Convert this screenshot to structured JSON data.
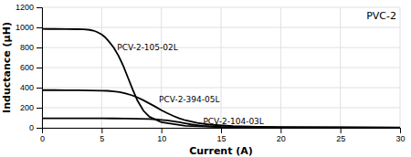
{
  "chart_data": {
    "type": "line",
    "title": "PVC-2",
    "x_label": "Current (A)",
    "y_label": "Inductance (μH)",
    "xlim": [
      0,
      30
    ],
    "ylim": [
      0,
      1200
    ],
    "xticks": [
      0,
      5,
      10,
      15,
      20,
      25,
      30
    ],
    "yticks": [
      0,
      200,
      400,
      600,
      800,
      1000,
      1200
    ],
    "grid": true,
    "series": [
      {
        "color": "#000000",
        "x": [
          0,
          0.5,
          1,
          2,
          3,
          3.5,
          4,
          4.3,
          4.6,
          5.0,
          5.3,
          5.6,
          6.0,
          6.4,
          6.8,
          7.2,
          7.6,
          8.0,
          8.5,
          9.0,
          10,
          12,
          15,
          20,
          25,
          30
        ],
        "values": [
          985,
          984,
          984,
          983,
          982,
          980,
          975,
          968,
          955,
          930,
          900,
          860,
          800,
          720,
          620,
          500,
          380,
          270,
          170,
          110,
          55,
          20,
          8,
          4,
          3,
          2
        ]
      },
      {
        "color": "#000000",
        "x": [
          0,
          1,
          2,
          3,
          4,
          5,
          5.5,
          6,
          6.5,
          7,
          7.5,
          8,
          8.5,
          9,
          9.5,
          10,
          10.5,
          11,
          11.5,
          12,
          13,
          14,
          16,
          18,
          20,
          25,
          30
        ],
        "values": [
          375,
          375,
          374,
          373,
          372,
          370,
          368,
          363,
          355,
          342,
          325,
          302,
          274,
          242,
          210,
          175,
          145,
          118,
          95,
          75,
          48,
          32,
          16,
          10,
          7,
          5,
          4
        ]
      },
      {
        "color": "#000000",
        "x": [
          0,
          1,
          2,
          3,
          4,
          5,
          6,
          7,
          8,
          9,
          9.5,
          10,
          10.5,
          11,
          11.5,
          12,
          12.5,
          13,
          13.5,
          14,
          15,
          16,
          18,
          20,
          25,
          30
        ],
        "values": [
          95,
          95,
          95,
          95,
          94,
          94,
          93,
          92,
          90,
          87,
          84,
          79,
          73,
          65,
          55,
          44,
          34,
          26,
          19,
          14,
          8,
          5,
          3,
          2,
          1,
          1
        ]
      }
    ],
    "annotations": [
      {
        "text": "PCV-2-105-02L",
        "x": 6.3,
        "y": 800,
        "color": "#000000"
      },
      {
        "text": "PCV-2-394-05L",
        "x": 9.8,
        "y": 285,
        "color": "#000000"
      },
      {
        "text": "PCV-2-104-03L",
        "x": 13.5,
        "y": 65,
        "color": "#000000"
      }
    ]
  }
}
